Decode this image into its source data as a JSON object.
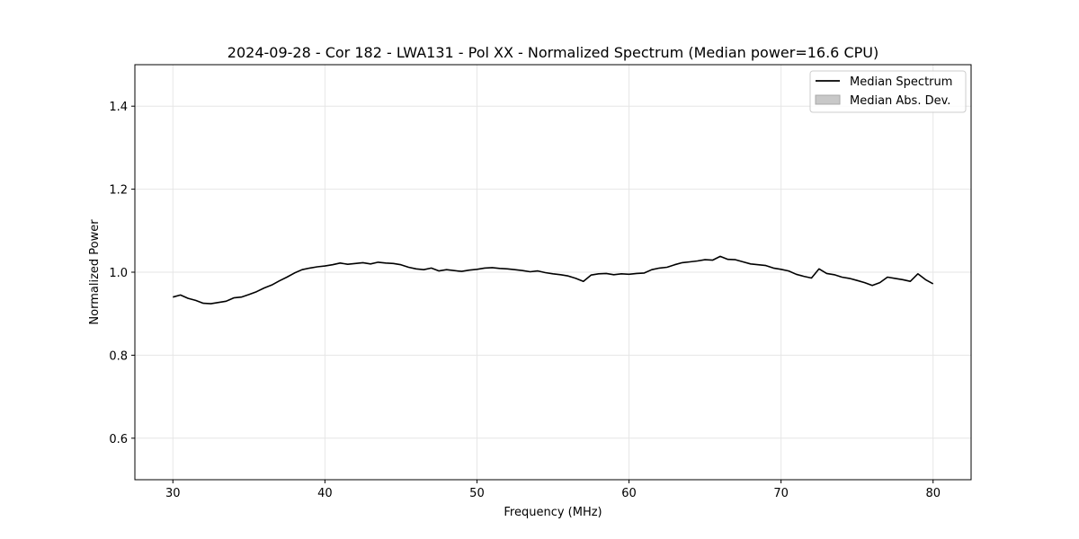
{
  "chart_data": {
    "type": "line",
    "title": "2024-09-28 - Cor 182 - LWA131 - Pol XX - Normalized Spectrum (Median power=16.6 CPU)",
    "xlabel": "Frequency (MHz)",
    "ylabel": "Normalized Power",
    "xlim": [
      27.5,
      82.5
    ],
    "ylim": [
      0.5,
      1.5
    ],
    "xticks": [
      30,
      40,
      50,
      60,
      70,
      80
    ],
    "yticks": [
      0.6,
      0.8,
      1.0,
      1.2,
      1.4
    ],
    "xtick_labels": [
      "30",
      "40",
      "50",
      "60",
      "70",
      "80"
    ],
    "ytick_labels": [
      "0.6",
      "0.8",
      "1.0",
      "1.2",
      "1.4"
    ],
    "grid": true,
    "legend_position": "top-right",
    "series": [
      {
        "name": "Median Spectrum",
        "color": "#000000",
        "x": [
          30.0,
          30.5,
          31.0,
          31.5,
          32.0,
          32.5,
          33.0,
          33.5,
          34.0,
          34.5,
          35.0,
          35.5,
          36.0,
          36.5,
          37.0,
          37.5,
          38.0,
          38.5,
          39.0,
          39.5,
          40.0,
          40.5,
          41.0,
          41.5,
          42.0,
          42.5,
          43.0,
          43.5,
          44.0,
          44.5,
          45.0,
          45.5,
          46.0,
          46.5,
          47.0,
          47.5,
          48.0,
          48.5,
          49.0,
          49.5,
          50.0,
          50.5,
          51.0,
          51.5,
          52.0,
          52.5,
          53.0,
          53.5,
          54.0,
          54.5,
          55.0,
          55.5,
          56.0,
          56.5,
          57.0,
          57.5,
          58.0,
          58.5,
          59.0,
          59.5,
          60.0,
          60.5,
          61.0,
          61.5,
          62.0,
          62.5,
          63.0,
          63.5,
          64.0,
          64.5,
          65.0,
          65.5,
          66.0,
          66.5,
          67.0,
          67.5,
          68.0,
          68.5,
          69.0,
          69.5,
          70.0,
          70.5,
          71.0,
          71.5,
          72.0,
          72.5,
          73.0,
          73.5,
          74.0,
          74.5,
          75.0,
          75.5,
          76.0,
          76.5,
          77.0,
          77.5,
          78.0,
          78.5,
          79.0,
          79.5,
          80.0
        ],
        "values": [
          0.94,
          0.945,
          0.937,
          0.932,
          0.925,
          0.924,
          0.927,
          0.93,
          0.938,
          0.94,
          0.946,
          0.953,
          0.962,
          0.969,
          0.979,
          0.988,
          0.998,
          1.006,
          1.01,
          1.013,
          1.015,
          1.018,
          1.022,
          1.019,
          1.021,
          1.023,
          1.02,
          1.024,
          1.022,
          1.021,
          1.018,
          1.012,
          1.008,
          1.006,
          1.01,
          1.003,
          1.006,
          1.004,
          1.002,
          1.005,
          1.007,
          1.01,
          1.011,
          1.009,
          1.008,
          1.006,
          1.004,
          1.001,
          1.003,
          0.999,
          0.996,
          0.994,
          0.991,
          0.985,
          0.978,
          0.993,
          0.996,
          0.997,
          0.994,
          0.996,
          0.995,
          0.997,
          0.998,
          1.006,
          1.01,
          1.012,
          1.018,
          1.023,
          1.025,
          1.027,
          1.03,
          1.029,
          1.038,
          1.031,
          1.03,
          1.025,
          1.02,
          1.018,
          1.016,
          1.01,
          1.007,
          1.003,
          0.995,
          0.99,
          0.986,
          1.008,
          0.997,
          0.994,
          0.988,
          0.985,
          0.98,
          0.975,
          0.968,
          0.975,
          0.988,
          0.985,
          0.982,
          0.978,
          0.996,
          0.982,
          0.972
        ]
      }
    ],
    "bands": [
      {
        "name": "Median Abs. Dev.",
        "color": "#c8c8c8"
      }
    ]
  }
}
